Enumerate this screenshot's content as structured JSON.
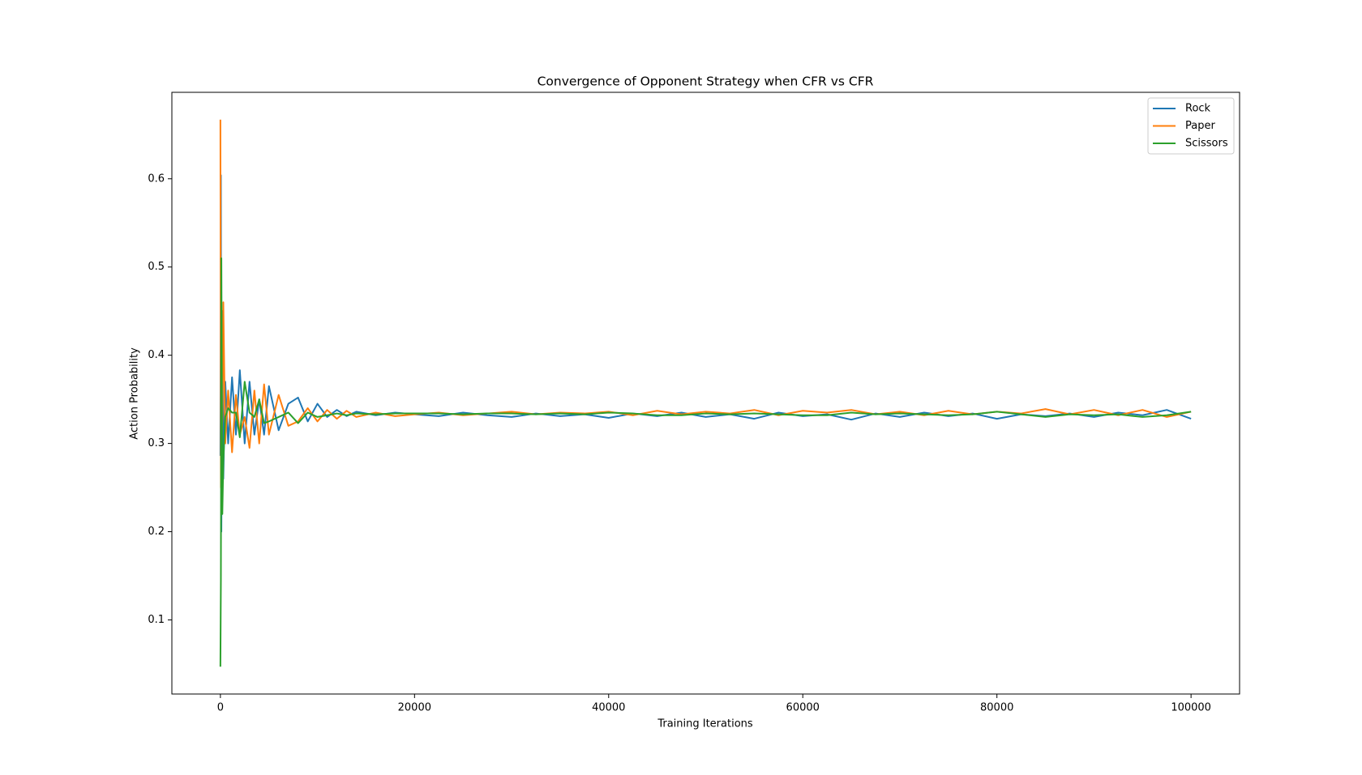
{
  "chart_data": {
    "type": "line",
    "title": "Convergence of Opponent Strategy when CFR vs CFR",
    "x_label": "Training Iterations",
    "y_label": "Action Probability",
    "x": [
      0,
      50,
      100,
      200,
      300,
      500,
      800,
      1200,
      1600,
      2000,
      2500,
      3000,
      3500,
      4000,
      4500,
      5000,
      6000,
      7000,
      8000,
      9000,
      10000,
      11000,
      12000,
      13000,
      14000,
      16000,
      18000,
      20000,
      22500,
      25000,
      27500,
      30000,
      32500,
      35000,
      37500,
      40000,
      42500,
      45000,
      47500,
      50000,
      52500,
      55000,
      57500,
      60000,
      62500,
      65000,
      67500,
      70000,
      72500,
      75000,
      77500,
      80000,
      82500,
      85000,
      87500,
      90000,
      92500,
      95000,
      97500,
      100000
    ],
    "series": [
      {
        "name": "Rock",
        "color": "#1f77b4",
        "values": [
          0.286,
          0.604,
          0.2,
          0.45,
          0.26,
          0.37,
          0.3,
          0.375,
          0.31,
          0.383,
          0.3,
          0.37,
          0.31,
          0.35,
          0.31,
          0.365,
          0.315,
          0.345,
          0.352,
          0.325,
          0.345,
          0.33,
          0.338,
          0.331,
          0.336,
          0.332,
          0.335,
          0.333,
          0.331,
          0.335,
          0.332,
          0.33,
          0.334,
          0.331,
          0.333,
          0.329,
          0.334,
          0.331,
          0.335,
          0.33,
          0.333,
          0.328,
          0.335,
          0.331,
          0.333,
          0.327,
          0.334,
          0.33,
          0.335,
          0.331,
          0.334,
          0.328,
          0.333,
          0.331,
          0.334,
          0.33,
          0.335,
          0.332,
          0.338,
          0.328
        ]
      },
      {
        "name": "Paper",
        "color": "#ff7f0e",
        "values": [
          0.667,
          0.25,
          0.29,
          0.33,
          0.46,
          0.3,
          0.36,
          0.29,
          0.355,
          0.31,
          0.33,
          0.295,
          0.36,
          0.3,
          0.367,
          0.31,
          0.355,
          0.32,
          0.325,
          0.34,
          0.325,
          0.338,
          0.328,
          0.337,
          0.33,
          0.335,
          0.331,
          0.333,
          0.335,
          0.332,
          0.334,
          0.336,
          0.333,
          0.335,
          0.334,
          0.336,
          0.332,
          0.337,
          0.333,
          0.336,
          0.334,
          0.338,
          0.332,
          0.337,
          0.335,
          0.338,
          0.333,
          0.336,
          0.332,
          0.337,
          0.333,
          0.336,
          0.334,
          0.339,
          0.333,
          0.338,
          0.332,
          0.338,
          0.33,
          0.336
        ]
      },
      {
        "name": "Scissors",
        "color": "#2ca02c",
        "values": [
          0.047,
          0.146,
          0.51,
          0.22,
          0.28,
          0.33,
          0.34,
          0.335,
          0.335,
          0.307,
          0.37,
          0.335,
          0.33,
          0.35,
          0.323,
          0.325,
          0.33,
          0.335,
          0.323,
          0.335,
          0.33,
          0.332,
          0.334,
          0.332,
          0.334,
          0.333,
          0.334,
          0.334,
          0.334,
          0.333,
          0.334,
          0.334,
          0.333,
          0.334,
          0.333,
          0.335,
          0.334,
          0.332,
          0.332,
          0.334,
          0.333,
          0.334,
          0.333,
          0.332,
          0.332,
          0.335,
          0.333,
          0.334,
          0.333,
          0.332,
          0.333,
          0.336,
          0.333,
          0.33,
          0.333,
          0.332,
          0.333,
          0.33,
          0.332,
          0.336
        ]
      }
    ],
    "xlim": [
      -5000,
      105000
    ],
    "xticks": [
      0,
      20000,
      40000,
      60000,
      80000,
      100000
    ],
    "ylim": [
      0.016,
      0.698
    ],
    "yticks": [
      0.1,
      0.2,
      0.3,
      0.4,
      0.5,
      0.6
    ],
    "grid": false,
    "legend": "upper right"
  }
}
